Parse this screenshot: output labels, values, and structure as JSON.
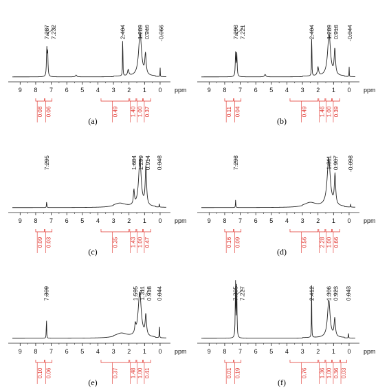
{
  "chart_data": [
    {
      "type": "line",
      "panel_label": "(a)",
      "x_unit_label": "ppm",
      "x_ticks": [
        "9",
        "8",
        "7",
        "6",
        "5",
        "4",
        "3",
        "2",
        "1",
        "0"
      ],
      "xlim": [
        9.5,
        -0.4
      ],
      "peak_labels": [
        {
          "text": "7.287",
          "ppm": 7.287
        },
        {
          "text": "7.232",
          "ppm": 7.232
        },
        {
          "text": "2.404",
          "ppm": 2.404
        },
        {
          "text": "1.289",
          "ppm": 1.289
        },
        {
          "text": "0.940",
          "ppm": 0.94
        },
        {
          "text": "-0.066",
          "ppm": -0.066
        }
      ],
      "peaks": [
        {
          "ppm": 7.287,
          "height": 0.44,
          "width": 0.025
        },
        {
          "ppm": 7.232,
          "height": 0.41,
          "width": 0.025
        },
        {
          "ppm": 5.4,
          "height": 0.03,
          "width": 0.05
        },
        {
          "ppm": 2.404,
          "height": 0.8,
          "width": 0.012
        },
        {
          "ppm": 2.05,
          "height": 0.1,
          "width": 0.05
        },
        {
          "ppm": 1.289,
          "height": 0.72,
          "width": 0.11
        },
        {
          "ppm": 0.94,
          "height": 0.34,
          "width": 0.05
        },
        {
          "ppm": 0.0,
          "height": 0.18,
          "width": 0.008
        }
      ],
      "integrals": [
        {
          "value": "0.08",
          "ppm_start": 8.0,
          "ppm_end": 7.45
        },
        {
          "value": "0.06",
          "ppm_start": 7.4,
          "ppm_end": 6.95
        },
        {
          "value": "0.49",
          "ppm_start": 3.8,
          "ppm_end": 2.0
        },
        {
          "value": "1.40",
          "ppm_start": 1.95,
          "ppm_end": 1.55
        },
        {
          "value": "1.00",
          "ppm_start": 1.5,
          "ppm_end": 1.12
        },
        {
          "value": "0.37",
          "ppm_start": 1.08,
          "ppm_end": 0.6
        }
      ]
    },
    {
      "type": "line",
      "panel_label": "(b)",
      "x_unit_label": "ppm",
      "x_ticks": [
        "9",
        "8",
        "7",
        "6",
        "5",
        "4",
        "3",
        "2",
        "1",
        "0"
      ],
      "xlim": [
        9.5,
        -0.4
      ],
      "peak_labels": [
        {
          "text": "7.298",
          "ppm": 7.298
        },
        {
          "text": "7.221",
          "ppm": 7.221
        },
        {
          "text": "2.404",
          "ppm": 2.404
        },
        {
          "text": "1.289",
          "ppm": 1.289
        },
        {
          "text": "0.918",
          "ppm": 0.918
        },
        {
          "text": "-0.044",
          "ppm": -0.044
        }
      ],
      "peaks": [
        {
          "ppm": 7.298,
          "height": 0.4,
          "width": 0.025
        },
        {
          "ppm": 7.221,
          "height": 0.37,
          "width": 0.025
        },
        {
          "ppm": 5.4,
          "height": 0.04,
          "width": 0.05
        },
        {
          "ppm": 2.404,
          "height": 0.86,
          "width": 0.012
        },
        {
          "ppm": 2.0,
          "height": 0.14,
          "width": 0.05
        },
        {
          "ppm": 1.289,
          "height": 0.7,
          "width": 0.11
        },
        {
          "ppm": 0.918,
          "height": 0.42,
          "width": 0.05
        },
        {
          "ppm": 0.0,
          "height": 0.2,
          "width": 0.008
        }
      ],
      "integrals": [
        {
          "value": "0.11",
          "ppm_start": 8.0,
          "ppm_end": 7.45
        },
        {
          "value": "0.04",
          "ppm_start": 7.4,
          "ppm_end": 6.95
        },
        {
          "value": "0.49",
          "ppm_start": 3.8,
          "ppm_end": 2.0
        },
        {
          "value": "1.46",
          "ppm_start": 1.95,
          "ppm_end": 1.55
        },
        {
          "value": "1.00",
          "ppm_start": 1.5,
          "ppm_end": 1.12
        },
        {
          "value": "0.39",
          "ppm_start": 1.08,
          "ppm_end": 0.6
        }
      ]
    },
    {
      "type": "line",
      "panel_label": "(c)",
      "x_unit_label": "ppm",
      "x_ticks": [
        "9",
        "8",
        "7",
        "6",
        "5",
        "4",
        "3",
        "2",
        "1",
        "0"
      ],
      "xlim": [
        9.5,
        -0.4
      ],
      "peak_labels": [
        {
          "text": "7.295",
          "ppm": 7.295
        },
        {
          "text": "1.684",
          "ppm": 1.684
        },
        {
          "text": "1.299",
          "ppm": 1.299
        },
        {
          "text": "0.914",
          "ppm": 0.914
        },
        {
          "text": "0.048",
          "ppm": 0.048
        }
      ],
      "peaks": [
        {
          "ppm": 7.295,
          "height": 0.12,
          "width": 0.012
        },
        {
          "ppm": 2.6,
          "height": 0.06,
          "width": 0.45
        },
        {
          "ppm": 1.684,
          "height": 0.24,
          "width": 0.04
        },
        {
          "ppm": 1.299,
          "height": 0.78,
          "width": 0.1
        },
        {
          "ppm": 0.914,
          "height": 0.65,
          "width": 0.05
        },
        {
          "ppm": 0.048,
          "height": 0.1,
          "width": 0.008
        }
      ],
      "integrals": [
        {
          "value": "0.09",
          "ppm_start": 8.0,
          "ppm_end": 7.45
        },
        {
          "value": "0.03",
          "ppm_start": 7.4,
          "ppm_end": 6.95
        },
        {
          "value": "0.35",
          "ppm_start": 3.8,
          "ppm_end": 2.0
        },
        {
          "value": "1.43",
          "ppm_start": 1.95,
          "ppm_end": 1.55
        },
        {
          "value": "1.00",
          "ppm_start": 1.5,
          "ppm_end": 1.12
        },
        {
          "value": "0.47",
          "ppm_start": 1.08,
          "ppm_end": 0.6
        }
      ]
    },
    {
      "type": "line",
      "panel_label": "(d)",
      "x_unit_label": "ppm",
      "x_ticks": [
        "9",
        "8",
        "7",
        "6",
        "5",
        "4",
        "3",
        "2",
        "1",
        "0"
      ],
      "xlim": [
        9.5,
        -0.4
      ],
      "peak_labels": [
        {
          "text": "7.298",
          "ppm": 7.298
        },
        {
          "text": "1.311",
          "ppm": 1.311
        },
        {
          "text": "0.907",
          "ppm": 0.907
        },
        {
          "text": "-0.098",
          "ppm": -0.098
        }
      ],
      "peaks": [
        {
          "ppm": 7.298,
          "height": 0.14,
          "width": 0.012
        },
        {
          "ppm": 2.5,
          "height": 0.07,
          "width": 0.45
        },
        {
          "ppm": 1.311,
          "height": 0.8,
          "width": 0.12
        },
        {
          "ppm": 0.907,
          "height": 0.5,
          "width": 0.05
        },
        {
          "ppm": -0.098,
          "height": 0.07,
          "width": 0.008
        }
      ],
      "integrals": [
        {
          "value": "0.16",
          "ppm_start": 8.0,
          "ppm_end": 7.45
        },
        {
          "value": "0.09",
          "ppm_start": 7.4,
          "ppm_end": 6.95
        },
        {
          "value": "0.56",
          "ppm_start": 3.8,
          "ppm_end": 2.0
        },
        {
          "value": "2.28",
          "ppm_start": 1.95,
          "ppm_end": 1.55
        },
        {
          "value": "1.00",
          "ppm_start": 1.5,
          "ppm_end": 1.12
        },
        {
          "value": "0.66",
          "ppm_start": 1.08,
          "ppm_end": 0.6
        }
      ]
    },
    {
      "type": "line",
      "panel_label": "(e)",
      "x_unit_label": "ppm",
      "x_ticks": [
        "9",
        "8",
        "7",
        "6",
        "5",
        "4",
        "3",
        "2",
        "1",
        "0"
      ],
      "xlim": [
        9.5,
        -0.4
      ],
      "peak_labels": [
        {
          "text": "7.309",
          "ppm": 7.309
        },
        {
          "text": "1.595",
          "ppm": 1.595
        },
        {
          "text": "1.311",
          "ppm": 1.311
        },
        {
          "text": "0.918",
          "ppm": 0.918
        },
        {
          "text": "0.044",
          "ppm": 0.044
        }
      ],
      "peaks": [
        {
          "ppm": 7.309,
          "height": 0.38,
          "width": 0.012
        },
        {
          "ppm": 2.5,
          "height": 0.07,
          "width": 0.45
        },
        {
          "ppm": 1.595,
          "height": 0.14,
          "width": 0.04
        },
        {
          "ppm": 1.311,
          "height": 0.74,
          "width": 0.12
        },
        {
          "ppm": 0.918,
          "height": 0.34,
          "width": 0.05
        },
        {
          "ppm": 0.044,
          "height": 0.38,
          "width": 0.008
        }
      ],
      "integrals": [
        {
          "value": "0.10",
          "ppm_start": 8.0,
          "ppm_end": 7.45
        },
        {
          "value": "0.06",
          "ppm_start": 7.4,
          "ppm_end": 6.95
        },
        {
          "value": "0.37",
          "ppm_start": 3.8,
          "ppm_end": 2.0
        },
        {
          "value": "1.48",
          "ppm_start": 1.95,
          "ppm_end": 1.55
        },
        {
          "value": "1.00",
          "ppm_start": 1.5,
          "ppm_end": 1.12
        },
        {
          "value": "0.41",
          "ppm_start": 1.08,
          "ppm_end": 0.6
        }
      ]
    },
    {
      "type": "line",
      "panel_label": "(f)",
      "x_unit_label": "ppm",
      "x_ticks": [
        "9",
        "8",
        "7",
        "6",
        "5",
        "4",
        "3",
        "2",
        "1",
        "0"
      ],
      "xlim": [
        9.5,
        -0.4
      ],
      "peak_labels": [
        {
          "text": "7.305",
          "ppm": 7.305
        },
        {
          "text": "7.227",
          "ppm": 7.227
        },
        {
          "text": "2.412",
          "ppm": 2.412
        },
        {
          "text": "1.306",
          "ppm": 1.306
        },
        {
          "text": "0.923",
          "ppm": 0.923
        },
        {
          "text": "0.043",
          "ppm": 0.043
        }
      ],
      "peaks": [
        {
          "ppm": 7.305,
          "height": 0.92,
          "width": 0.02
        },
        {
          "ppm": 7.227,
          "height": 0.88,
          "width": 0.02
        },
        {
          "ppm": 2.412,
          "height": 0.86,
          "width": 0.012
        },
        {
          "ppm": 1.306,
          "height": 0.62,
          "width": 0.1
        },
        {
          "ppm": 0.923,
          "height": 0.3,
          "width": 0.05
        },
        {
          "ppm": 0.043,
          "height": 0.14,
          "width": 0.008
        }
      ],
      "integrals": [
        {
          "value": "0.01",
          "ppm_start": 8.0,
          "ppm_end": 7.45
        },
        {
          "value": "0.19",
          "ppm_start": 7.4,
          "ppm_end": 6.95
        },
        {
          "value": "0.76",
          "ppm_start": 3.8,
          "ppm_end": 2.0
        },
        {
          "value": "1.36",
          "ppm_start": 1.95,
          "ppm_end": 1.55
        },
        {
          "value": "1.00",
          "ppm_start": 1.5,
          "ppm_end": 1.12
        },
        {
          "value": "0.36",
          "ppm_start": 1.08,
          "ppm_end": 0.6
        },
        {
          "value": "0.03",
          "ppm_start": 0.55,
          "ppm_end": 0.15
        }
      ]
    }
  ],
  "colors": {
    "spectrum": "#222222",
    "integral": "#e0302a",
    "axis": "#222222"
  }
}
